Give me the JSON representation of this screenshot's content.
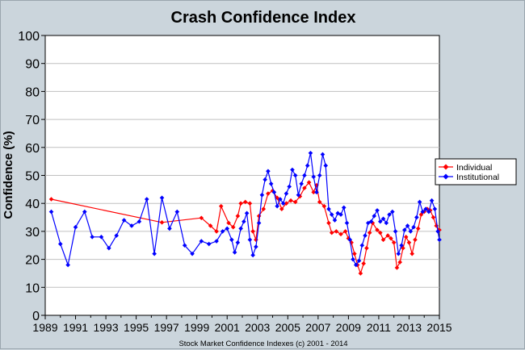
{
  "chart_data": {
    "type": "line",
    "title": "Crash Confidence Index",
    "ylabel": "Confidence (%)",
    "footer": "Stock Market Confidence Indexes (c) 2001 - 2014",
    "xlim": [
      1989,
      2015
    ],
    "ylim": [
      0,
      100
    ],
    "x_ticks": [
      "1989",
      "1991",
      "1993",
      "1995",
      "1997",
      "1999",
      "2001",
      "2003",
      "2005",
      "2007",
      "2009",
      "2011",
      "2013",
      "2015"
    ],
    "y_ticks": [
      "0",
      "10",
      "20",
      "30",
      "40",
      "50",
      "60",
      "70",
      "80",
      "90",
      "100"
    ],
    "grid": "horizontal",
    "legend_position": "right",
    "series": [
      {
        "name": "Individual",
        "color": "#ff0000",
        "points": [
          [
            1989.4,
            41.5
          ],
          [
            1996.7,
            33.2
          ],
          [
            1999.3,
            34.8
          ],
          [
            1999.9,
            32.0
          ],
          [
            2000.3,
            30.0
          ],
          [
            2000.6,
            39.0
          ],
          [
            2001.1,
            33.0
          ],
          [
            2001.4,
            31.5
          ],
          [
            2001.7,
            35.5
          ],
          [
            2001.9,
            40.0
          ],
          [
            2002.2,
            40.5
          ],
          [
            2002.5,
            40.0
          ],
          [
            2002.7,
            30.0
          ],
          [
            2002.9,
            27.0
          ],
          [
            2003.1,
            35.5
          ],
          [
            2003.4,
            38.0
          ],
          [
            2003.7,
            43.5
          ],
          [
            2004.0,
            44.5
          ],
          [
            2004.3,
            42.0
          ],
          [
            2004.6,
            38.0
          ],
          [
            2004.9,
            40.0
          ],
          [
            2005.2,
            41.0
          ],
          [
            2005.5,
            40.5
          ],
          [
            2005.8,
            42.5
          ],
          [
            2006.1,
            45.5
          ],
          [
            2006.4,
            47.5
          ],
          [
            2006.7,
            44.0
          ],
          [
            2006.9,
            46.5
          ],
          [
            2007.1,
            40.5
          ],
          [
            2007.4,
            39.0
          ],
          [
            2007.7,
            33.0
          ],
          [
            2007.9,
            29.5
          ],
          [
            2008.2,
            30.0
          ],
          [
            2008.5,
            29.0
          ],
          [
            2008.8,
            30.0
          ],
          [
            2009.0,
            27.5
          ],
          [
            2009.2,
            26.0
          ],
          [
            2009.4,
            22.0
          ],
          [
            2009.6,
            18.0
          ],
          [
            2009.8,
            15.0
          ],
          [
            2010.0,
            18.5
          ],
          [
            2010.2,
            24.0
          ],
          [
            2010.4,
            29.5
          ],
          [
            2010.6,
            33.0
          ],
          [
            2010.9,
            30.5
          ],
          [
            2011.1,
            29.5
          ],
          [
            2011.3,
            27.0
          ],
          [
            2011.6,
            28.5
          ],
          [
            2011.8,
            27.5
          ],
          [
            2012.0,
            26.0
          ],
          [
            2012.2,
            17.0
          ],
          [
            2012.4,
            19.0
          ],
          [
            2012.6,
            24.0
          ],
          [
            2012.8,
            28.0
          ],
          [
            2013.0,
            26.0
          ],
          [
            2013.2,
            22.0
          ],
          [
            2013.4,
            27.0
          ],
          [
            2013.6,
            31.0
          ],
          [
            2013.8,
            36.0
          ],
          [
            2014.0,
            37.0
          ],
          [
            2014.2,
            38.0
          ],
          [
            2014.4,
            37.5
          ],
          [
            2014.6,
            35.0
          ],
          [
            2014.8,
            32.0
          ],
          [
            2015.0,
            30.5
          ]
        ]
      },
      {
        "name": "Institutional",
        "color": "#0000ff",
        "points": [
          [
            1989.4,
            37.0
          ],
          [
            1990.0,
            25.5
          ],
          [
            1990.5,
            18.0
          ],
          [
            1991.0,
            31.5
          ],
          [
            1991.6,
            37.0
          ],
          [
            1992.1,
            28.0
          ],
          [
            1992.7,
            28.0
          ],
          [
            1993.2,
            24.0
          ],
          [
            1993.7,
            28.5
          ],
          [
            1994.2,
            34.0
          ],
          [
            1994.7,
            32.0
          ],
          [
            1995.2,
            33.5
          ],
          [
            1995.7,
            41.5
          ],
          [
            1996.2,
            22.0
          ],
          [
            1996.7,
            42.0
          ],
          [
            1997.2,
            31.0
          ],
          [
            1997.7,
            37.0
          ],
          [
            1998.2,
            25.0
          ],
          [
            1998.7,
            22.0
          ],
          [
            1999.3,
            26.5
          ],
          [
            1999.8,
            25.5
          ],
          [
            2000.3,
            26.5
          ],
          [
            2000.7,
            30.0
          ],
          [
            2001.0,
            31.0
          ],
          [
            2001.3,
            27.0
          ],
          [
            2001.5,
            22.5
          ],
          [
            2001.7,
            26.0
          ],
          [
            2001.9,
            31.0
          ],
          [
            2002.1,
            33.5
          ],
          [
            2002.3,
            36.5
          ],
          [
            2002.5,
            27.0
          ],
          [
            2002.7,
            21.5
          ],
          [
            2002.9,
            24.5
          ],
          [
            2003.1,
            33.0
          ],
          [
            2003.3,
            43.0
          ],
          [
            2003.5,
            48.5
          ],
          [
            2003.7,
            51.5
          ],
          [
            2003.9,
            47.0
          ],
          [
            2004.1,
            44.0
          ],
          [
            2004.3,
            39.0
          ],
          [
            2004.5,
            41.5
          ],
          [
            2004.7,
            40.0
          ],
          [
            2004.9,
            43.5
          ],
          [
            2005.1,
            46.0
          ],
          [
            2005.3,
            52.0
          ],
          [
            2005.5,
            50.0
          ],
          [
            2005.7,
            43.0
          ],
          [
            2005.9,
            47.0
          ],
          [
            2006.1,
            50.0
          ],
          [
            2006.3,
            53.5
          ],
          [
            2006.5,
            58.0
          ],
          [
            2006.7,
            49.5
          ],
          [
            2006.9,
            44.0
          ],
          [
            2007.1,
            50.0
          ],
          [
            2007.3,
            57.5
          ],
          [
            2007.5,
            53.5
          ],
          [
            2007.7,
            38.0
          ],
          [
            2007.9,
            36.0
          ],
          [
            2008.1,
            34.0
          ],
          [
            2008.3,
            36.5
          ],
          [
            2008.5,
            36.0
          ],
          [
            2008.7,
            38.5
          ],
          [
            2008.9,
            33.0
          ],
          [
            2009.1,
            27.0
          ],
          [
            2009.3,
            20.0
          ],
          [
            2009.5,
            18.0
          ],
          [
            2009.7,
            19.5
          ],
          [
            2009.9,
            25.0
          ],
          [
            2010.1,
            28.5
          ],
          [
            2010.3,
            33.0
          ],
          [
            2010.5,
            33.5
          ],
          [
            2010.7,
            35.5
          ],
          [
            2010.9,
            37.5
          ],
          [
            2011.1,
            33.5
          ],
          [
            2011.3,
            34.5
          ],
          [
            2011.5,
            33.0
          ],
          [
            2011.7,
            36.0
          ],
          [
            2011.9,
            37.0
          ],
          [
            2012.1,
            30.0
          ],
          [
            2012.3,
            22.0
          ],
          [
            2012.5,
            25.0
          ],
          [
            2012.7,
            30.5
          ],
          [
            2012.9,
            32.0
          ],
          [
            2013.1,
            30.0
          ],
          [
            2013.3,
            31.5
          ],
          [
            2013.5,
            35.0
          ],
          [
            2013.7,
            40.5
          ],
          [
            2013.9,
            37.0
          ],
          [
            2014.1,
            38.0
          ],
          [
            2014.3,
            37.0
          ],
          [
            2014.5,
            41.0
          ],
          [
            2014.7,
            38.0
          ],
          [
            2014.9,
            30.0
          ],
          [
            2015.0,
            27.0
          ]
        ]
      }
    ]
  }
}
